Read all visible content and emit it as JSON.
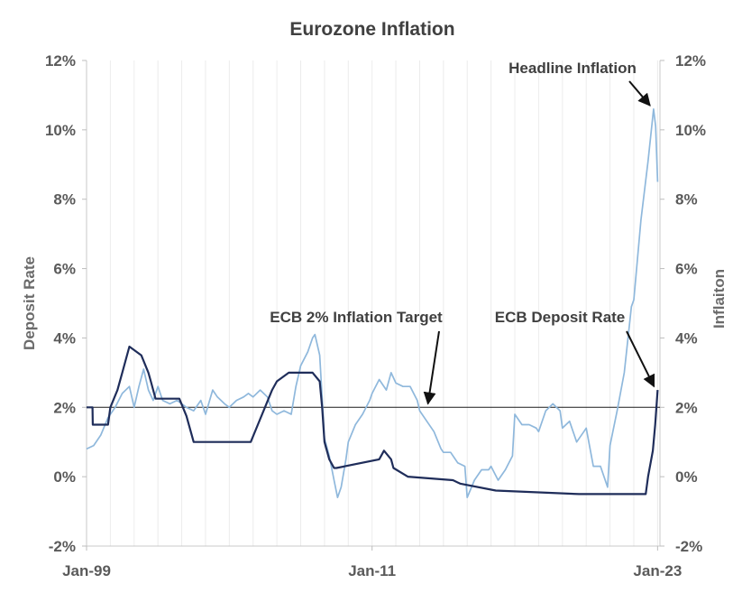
{
  "chart_data": {
    "type": "line",
    "title": "Eurozone Inflation",
    "ylabel_left": "Deposit  Rate",
    "ylabel_right": "Inflaiton",
    "ylim": [
      -2,
      12
    ],
    "yticks": [
      -2,
      0,
      2,
      4,
      6,
      8,
      10,
      12
    ],
    "ytick_labels": [
      "-2%",
      "0%",
      "2%",
      "4%",
      "6%",
      "8%",
      "10%",
      "12%"
    ],
    "xlim": [
      1999.0,
      2023.1
    ],
    "xticks": [
      {
        "x": 1999.0,
        "label": "Jan-99"
      },
      {
        "x": 2011.0,
        "label": "Jan-11"
      },
      {
        "x": 2023.0,
        "label": "Jan-23"
      }
    ],
    "grid": "vertical-minor",
    "target_line": {
      "name": "ECB 2% Inflation Target",
      "value": 2.0
    },
    "annotations": [
      {
        "text": "Headline Inflation",
        "points_to": [
          2022.83,
          10.6
        ]
      },
      {
        "text": "ECB 2% Inflation Target",
        "points_to": [
          2013.5,
          2.0
        ]
      },
      {
        "text": "ECB Deposit Rate",
        "points_to": [
          2023.0,
          2.5
        ]
      }
    ],
    "series": [
      {
        "name": "Headline Inflation",
        "color": "#8fb8dc",
        "x": [
          1999.0,
          1999.3,
          1999.6,
          1999.9,
          2000.2,
          2000.5,
          2000.8,
          2001.0,
          2001.2,
          2001.4,
          2001.6,
          2001.8,
          2002.0,
          2002.2,
          2002.5,
          2002.8,
          2003.0,
          2003.2,
          2003.5,
          2003.8,
          2004.0,
          2004.3,
          2004.5,
          2004.8,
          2005.0,
          2005.3,
          2005.6,
          2005.8,
          2006.0,
          2006.3,
          2006.6,
          2006.8,
          2007.0,
          2007.3,
          2007.6,
          2007.8,
          2008.0,
          2008.3,
          2008.5,
          2008.6,
          2008.8,
          2009.0,
          2009.2,
          2009.4,
          2009.55,
          2009.7,
          2009.9,
          2010.0,
          2010.3,
          2010.6,
          2010.9,
          2011.0,
          2011.3,
          2011.6,
          2011.8,
          2012.0,
          2012.3,
          2012.6,
          2012.9,
          2013.0,
          2013.3,
          2013.6,
          2013.9,
          2014.0,
          2014.3,
          2014.6,
          2014.9,
          2015.0,
          2015.3,
          2015.6,
          2015.9,
          2016.0,
          2016.3,
          2016.6,
          2016.9,
          2017.0,
          2017.3,
          2017.6,
          2017.9,
          2018.0,
          2018.3,
          2018.6,
          2018.9,
          2019.0,
          2019.3,
          2019.6,
          2019.9,
          2020.0,
          2020.3,
          2020.6,
          2020.9,
          2021.0,
          2021.3,
          2021.6,
          2021.9,
          2022.0,
          2022.3,
          2022.6,
          2022.83,
          2022.92,
          2023.0
        ],
        "values": [
          0.8,
          0.9,
          1.2,
          1.7,
          2.0,
          2.4,
          2.6,
          2.0,
          2.6,
          3.1,
          2.5,
          2.2,
          2.6,
          2.2,
          2.1,
          2.2,
          2.1,
          2.0,
          1.9,
          2.2,
          1.8,
          2.5,
          2.3,
          2.1,
          2.0,
          2.2,
          2.3,
          2.4,
          2.3,
          2.5,
          2.3,
          1.9,
          1.8,
          1.9,
          1.8,
          2.6,
          3.2,
          3.6,
          4.0,
          4.1,
          3.5,
          1.1,
          0.6,
          -0.1,
          -0.6,
          -0.3,
          0.5,
          1.0,
          1.5,
          1.8,
          2.2,
          2.4,
          2.8,
          2.5,
          3.0,
          2.7,
          2.6,
          2.6,
          2.2,
          1.9,
          1.6,
          1.3,
          0.8,
          0.7,
          0.7,
          0.4,
          0.3,
          -0.6,
          -0.1,
          0.2,
          0.2,
          0.3,
          -0.1,
          0.2,
          0.6,
          1.8,
          1.5,
          1.5,
          1.4,
          1.3,
          1.9,
          2.1,
          1.9,
          1.4,
          1.6,
          1.0,
          1.3,
          1.4,
          0.3,
          0.3,
          -0.3,
          0.9,
          1.9,
          3.0,
          4.9,
          5.1,
          7.4,
          9.1,
          10.6,
          10.1,
          8.5
        ]
      },
      {
        "name": "ECB Deposit Rate",
        "color": "#1f2d5a",
        "x": [
          1999.0,
          1999.25,
          1999.26,
          1999.9,
          2000.0,
          2000.3,
          2000.5,
          2000.8,
          2001.3,
          2001.6,
          2001.7,
          2001.9,
          2002.9,
          2003.2,
          2003.5,
          2005.9,
          2006.2,
          2006.5,
          2006.8,
          2007.0,
          2007.5,
          2008.5,
          2008.8,
          2008.9,
          2009.0,
          2009.2,
          2009.4,
          2009.5,
          2011.3,
          2011.5,
          2011.8,
          2011.9,
          2012.5,
          2014.4,
          2014.7,
          2016.2,
          2019.7,
          2022.5,
          2022.6,
          2022.8,
          2022.9,
          2023.0
        ],
        "values": [
          2.0,
          2.0,
          1.5,
          1.5,
          2.0,
          2.5,
          3.0,
          3.75,
          3.5,
          3.0,
          2.75,
          2.25,
          2.25,
          1.75,
          1.0,
          1.0,
          1.5,
          2.0,
          2.5,
          2.75,
          3.0,
          3.0,
          2.75,
          2.0,
          1.0,
          0.5,
          0.25,
          0.25,
          0.5,
          0.75,
          0.5,
          0.25,
          0.0,
          -0.1,
          -0.2,
          -0.4,
          -0.5,
          -0.5,
          0.0,
          0.75,
          1.5,
          2.5
        ]
      }
    ]
  }
}
